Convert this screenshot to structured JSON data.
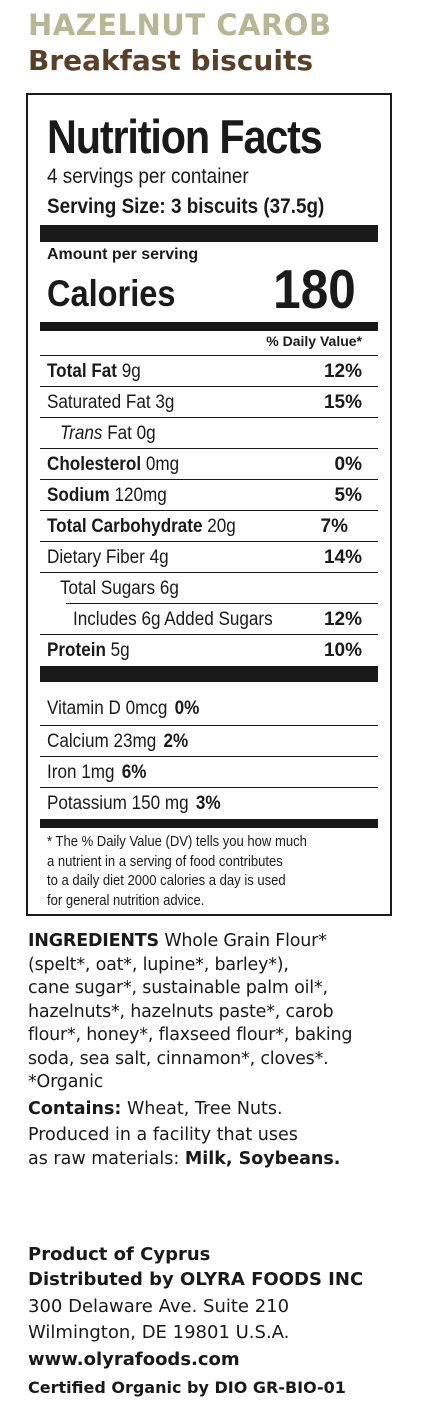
{
  "product": {
    "name": "HAZELNUT CAROB",
    "subtitle": "Breakfast biscuits"
  },
  "nutrition": {
    "title": "Nutrition Facts",
    "servings_per_container": "4 servings per container",
    "serving_size": "Serving Size: 3 biscuits (37.5g)",
    "amount_per_serving": "Amount per serving",
    "calories_label": "Calories",
    "calories_value": "180",
    "dv_header": "% Daily Value*",
    "rows": [
      {
        "name": "Total Fat",
        "amount": "9g",
        "dv": "12%"
      },
      {
        "name": "Saturated Fat",
        "amount": "3g",
        "dv": "15%"
      },
      {
        "name_italic": "Trans",
        "name": "Fat",
        "amount": "0g",
        "dv": ""
      },
      {
        "name": "Cholesterol",
        "amount": "0mg",
        "dv": "0%"
      },
      {
        "name": "Sodium",
        "amount": "120mg",
        "dv": "5%"
      },
      {
        "name": "Total Carbohydrate",
        "amount": "20g",
        "dv": "7%"
      },
      {
        "name": "Dietary Fiber",
        "amount": "4g",
        "dv": "14%"
      },
      {
        "name": "Total Sugars",
        "amount": "6g",
        "dv": ""
      },
      {
        "name": "Includes 6g Added Sugars",
        "amount": "",
        "dv": "12%"
      },
      {
        "name": "Protein",
        "amount": "5g",
        "dv": "10%"
      }
    ],
    "vitamins": [
      {
        "name": "Vitamin D",
        "amount": "0mcg",
        "dv": "0%"
      },
      {
        "name": "Calcium",
        "amount": "23mg",
        "dv": "2%"
      },
      {
        "name": "Iron",
        "amount": "1mg",
        "dv": "6%"
      },
      {
        "name": "Potassium",
        "amount": "150 mg",
        "dv": "3%"
      }
    ],
    "footnote": [
      "* The % Daily Value (DV) tells you how much",
      "a nutrient in a serving of food contributes",
      "to a daily diet 2000 calories a day is used",
      "for general nutrition advice."
    ]
  },
  "ingredients": {
    "label": "INGREDIENTS",
    "lines": [
      "Whole Grain Flour*",
      "(spelt*, oat*, lupine*, barley*),",
      "cane sugar*, sustainable palm oil*,",
      "hazelnuts*, hazelnuts paste*, carob",
      "flour*, honey*, flaxseed flour*, baking",
      "soda, sea salt, cinnamon*, cloves*.",
      "*Organic"
    ]
  },
  "allergens": {
    "contains_label": "Contains:",
    "contains_text": "Wheat, Tree Nuts.",
    "produced_line1": "Produced in a facility that uses",
    "produced_line2": "as raw materials:",
    "raw_materials": "Milk,  Soybeans."
  },
  "origin": {
    "product_of": "Product of Cyprus",
    "distributed_by_label": "Distributed by",
    "distributor": "OLYRA FOODS INC",
    "address1": "300 Delaware Ave. Suite 210",
    "address2": "Wilmington, DE 19801 U.S.A.",
    "website": "www.olyrafoods.com",
    "certification": "Certified Organic by DIO GR-BIO-01"
  }
}
